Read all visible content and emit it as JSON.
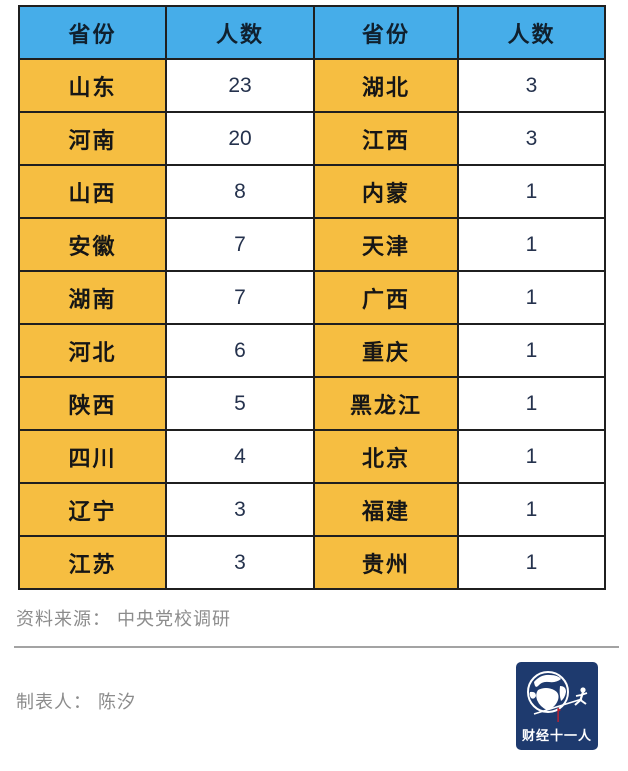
{
  "table": {
    "header": [
      "省份",
      "人数",
      "省份",
      "人数"
    ],
    "rows": [
      [
        "山东",
        "23",
        "湖北",
        "3"
      ],
      [
        "河南",
        "20",
        "江西",
        "3"
      ],
      [
        "山西",
        "8",
        "内蒙",
        "1"
      ],
      [
        "安徽",
        "7",
        "天津",
        "1"
      ],
      [
        "湖南",
        "7",
        "广西",
        "1"
      ],
      [
        "河北",
        "6",
        "重庆",
        "1"
      ],
      [
        "陕西",
        "5",
        "黑龙江",
        "1"
      ],
      [
        "四川",
        "4",
        "北京",
        "1"
      ],
      [
        "辽宁",
        "3",
        "福建",
        "1"
      ],
      [
        "江苏",
        "3",
        "贵州",
        "1"
      ]
    ]
  },
  "footer": {
    "source": "资料来源： 中央党校调研",
    "author": "制表人： 陈汐"
  },
  "logo": {
    "text": "财经十一人",
    "globe_icon": "globe-icon",
    "runner_icon": "runner-icon",
    "flag_icon": "red-flag-icon"
  },
  "colors": {
    "header_bg": "#46ade9",
    "province_bg": "#f6be41",
    "count_bg": "#ffffff",
    "border": "#1f1f1f",
    "footer_text": "#8c8c8c",
    "divider": "#a3a3a3",
    "logo_bg": "#1e3a6e",
    "logo_accent_red": "#c11e2f"
  },
  "chart_data": {
    "type": "table",
    "title": "",
    "columns": [
      "省份",
      "人数",
      "省份",
      "人数"
    ],
    "rows": [
      [
        "山东",
        23,
        "湖北",
        3
      ],
      [
        "河南",
        20,
        "江西",
        3
      ],
      [
        "山西",
        8,
        "内蒙",
        1
      ],
      [
        "安徽",
        7,
        "天津",
        1
      ],
      [
        "湖南",
        7,
        "广西",
        1
      ],
      [
        "河北",
        6,
        "重庆",
        1
      ],
      [
        "陕西",
        5,
        "黑龙江",
        1
      ],
      [
        "四川",
        4,
        "北京",
        1
      ],
      [
        "辽宁",
        3,
        "福建",
        1
      ],
      [
        "江苏",
        3,
        "贵州",
        1
      ]
    ],
    "source": "资料来源： 中央党校调研",
    "author": "制表人： 陈汐",
    "layout_hints": {
      "header_bg": "#46ade9",
      "province_col_bg": "#f6be41",
      "count_col_bg": "#ffffff",
      "grid": true
    }
  }
}
